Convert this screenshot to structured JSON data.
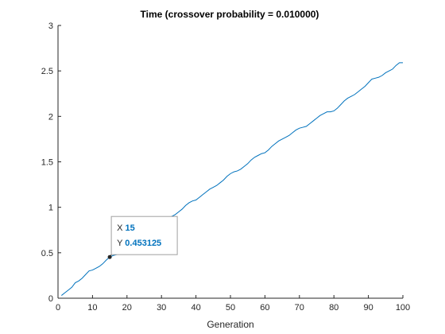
{
  "chart_data": {
    "type": "line",
    "title": "Time (crossover probability = 0.010000)",
    "xlabel": "Generation",
    "ylabel": "",
    "xlim": [
      0,
      100
    ],
    "ylim": [
      0,
      3
    ],
    "xticks": [
      0,
      10,
      20,
      30,
      40,
      50,
      60,
      70,
      80,
      90,
      100
    ],
    "yticks": [
      0,
      0.5,
      1,
      1.5,
      2,
      2.5,
      3
    ],
    "grid": false,
    "series": [
      {
        "name": "",
        "color": "#0072bd",
        "x": [
          1,
          2,
          3,
          4,
          5,
          6,
          7,
          8,
          9,
          10,
          11,
          12,
          13,
          14,
          15,
          16,
          17,
          18,
          19,
          20,
          21,
          22,
          23,
          24,
          25,
          26,
          27,
          28,
          29,
          30,
          31,
          32,
          33,
          34,
          35,
          36,
          37,
          38,
          39,
          40,
          41,
          42,
          43,
          44,
          45,
          46,
          47,
          48,
          49,
          50,
          51,
          52,
          53,
          54,
          55,
          56,
          57,
          58,
          59,
          60,
          61,
          62,
          63,
          64,
          65,
          66,
          67,
          68,
          69,
          70,
          71,
          72,
          73,
          74,
          75,
          76,
          77,
          78,
          79,
          80,
          81,
          82,
          83,
          84,
          85,
          86,
          87,
          88,
          89,
          90,
          91,
          92,
          93,
          94,
          95,
          96,
          97,
          98,
          99,
          100
        ],
        "y": [
          0.03,
          0.06,
          0.09,
          0.12,
          0.17,
          0.19,
          0.22,
          0.26,
          0.3,
          0.31,
          0.33,
          0.35,
          0.38,
          0.42,
          0.453125,
          0.47,
          0.48,
          0.5,
          0.54,
          0.57,
          0.61,
          0.64,
          0.67,
          0.69,
          0.72,
          0.75,
          0.78,
          0.82,
          0.85,
          0.87,
          0.88,
          0.89,
          0.9,
          0.92,
          0.95,
          0.98,
          1.02,
          1.05,
          1.07,
          1.08,
          1.11,
          1.14,
          1.17,
          1.2,
          1.22,
          1.24,
          1.27,
          1.3,
          1.34,
          1.37,
          1.39,
          1.4,
          1.42,
          1.45,
          1.48,
          1.52,
          1.55,
          1.57,
          1.59,
          1.6,
          1.63,
          1.67,
          1.7,
          1.73,
          1.75,
          1.77,
          1.79,
          1.82,
          1.85,
          1.87,
          1.88,
          1.89,
          1.92,
          1.95,
          1.98,
          2.01,
          2.03,
          2.05,
          2.05,
          2.06,
          2.09,
          2.13,
          2.17,
          2.2,
          2.22,
          2.24,
          2.27,
          2.3,
          2.33,
          2.37,
          2.41,
          2.42,
          2.43,
          2.45,
          2.48,
          2.5,
          2.52,
          2.56,
          2.59,
          2.59
        ]
      }
    ],
    "datatip": {
      "x_label": "X",
      "x_value": "15",
      "y_label": "Y",
      "y_value": "0.453125",
      "point_x": 15,
      "point_y": 0.453125
    }
  }
}
